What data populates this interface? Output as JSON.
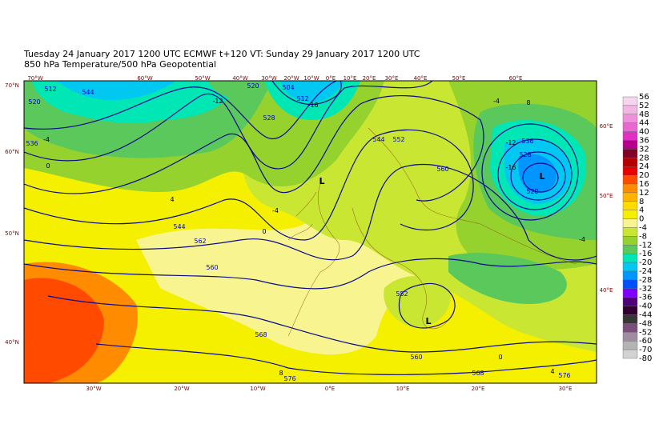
{
  "header": {
    "line1": "Tuesday 24 January 2017 1200 UTC  ECMWF  t+120  VT: Sunday 29 January 2017 1200 UTC",
    "line2": "850 hPa Temperature/500 hPa Geopotential"
  },
  "map": {
    "lon_labels_top": [
      "70°W",
      "60°W",
      "50°W",
      "40°W",
      "30°W",
      "20°W",
      "10°W",
      "0°E",
      "10°E",
      "20°E",
      "30°E",
      "40°E",
      "50°E",
      "60°E"
    ],
    "lon_labels_bottom": [
      "30°W",
      "20°W",
      "10°W",
      "0°E",
      "10°E",
      "20°E",
      "30°E"
    ],
    "lat_labels_left": [
      "70°N",
      "60°N",
      "50°N",
      "40°N"
    ],
    "lat_labels_right": [
      "60°E",
      "50°E",
      "40°E"
    ],
    "geopotential_labels": [
      "512",
      "520",
      "536",
      "544",
      "528",
      "520",
      "504",
      "512",
      "544",
      "562",
      "560",
      "568",
      "576",
      "544",
      "552",
      "560",
      "536",
      "528",
      "520",
      "552",
      "560",
      "568",
      "576"
    ],
    "temperature_labels": [
      "-4",
      "0",
      "-12",
      "-16",
      "4",
      "0",
      "-4",
      "-12",
      "-16",
      "8",
      "-4",
      "-4",
      "8",
      "4",
      "0"
    ],
    "low_centres": [
      "L",
      "L",
      "L"
    ]
  },
  "legend": {
    "levels": [
      56,
      52,
      48,
      44,
      40,
      36,
      32,
      28,
      24,
      20,
      16,
      12,
      8,
      4,
      0,
      -4,
      -8,
      -12,
      -16,
      -20,
      -24,
      -28,
      -32,
      -36,
      -40,
      -44,
      -48,
      -52,
      -60,
      -70,
      -80
    ],
    "colors": [
      "#f6d6ee",
      "#f2b6e4",
      "#ee90da",
      "#e868d2",
      "#e030c4",
      "#b4008a",
      "#800028",
      "#b40000",
      "#e60000",
      "#ff4a00",
      "#ff8c00",
      "#ffb400",
      "#ffdc00",
      "#f4f000",
      "#f8f490",
      "#c8e632",
      "#96d22d",
      "#5ac85a",
      "#00e6b4",
      "#00c8f0",
      "#0096ff",
      "#0050ff",
      "#8000ff",
      "#50007a",
      "#320032",
      "#373737",
      "#785078",
      "#a08ca0",
      "#b4b4b4",
      "#d2d2d2",
      "#ececec"
    ]
  }
}
